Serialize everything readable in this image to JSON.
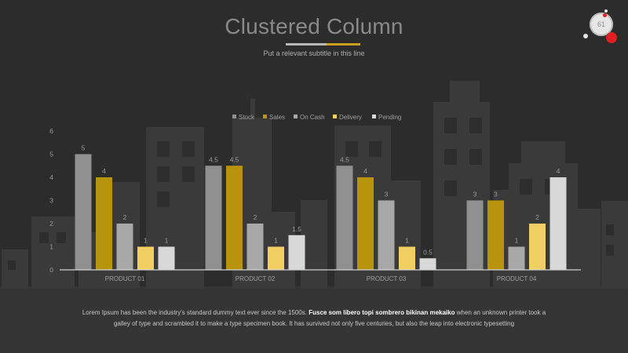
{
  "slide": {
    "title": "Clustered Column",
    "subtitle": "Put a relevant subtitle in this line",
    "page_number": "61",
    "footer_part1": "Lorem Ipsum has been the industry's standard dummy text ever since the 1500s.",
    "footer_bold": "Fusce som libero topi sombrero bikinan mekaiko",
    "footer_part2": "when an unknown printer took a galley of type and scrambled it to make a type specimen book. It has survived not only five centuries, but also the leap into electronic typesetting"
  },
  "colors": {
    "background": "#2d2c2c",
    "title": "#8a8a8a",
    "accent_gold": "#c8a020",
    "accent_red": "#e02020"
  },
  "chart_data": {
    "type": "bar",
    "categories": [
      "PRODUCT 01",
      "PRODUCT 02",
      "PRODUCT 03",
      "PRODUCT 04"
    ],
    "series": [
      {
        "name": "Stock",
        "color": "#909090",
        "values": [
          5,
          4.5,
          4.5,
          3
        ]
      },
      {
        "name": "Sales",
        "color": "#b8940e",
        "values": [
          4,
          4.5,
          4,
          3
        ]
      },
      {
        "name": "On Cash",
        "color": "#a8a8a8",
        "values": [
          2,
          2,
          3,
          1
        ]
      },
      {
        "name": "Delivery",
        "color": "#f2cf62",
        "values": [
          1,
          1,
          1,
          2
        ]
      },
      {
        "name": "Pending",
        "color": "#d8d8d8",
        "values": [
          1,
          1.5,
          0.5,
          4
        ]
      }
    ],
    "data_labels": [
      [
        "5",
        "4",
        "2",
        "1",
        "1"
      ],
      [
        "4.5",
        "4.5",
        "2",
        "1",
        "1.5"
      ],
      [
        "4.5",
        "4",
        "3",
        "1",
        "0.5"
      ],
      [
        "3",
        "3",
        "1",
        "2",
        "4"
      ]
    ],
    "y_ticks": [
      "0",
      "1",
      "2",
      "3",
      "4",
      "5",
      "6"
    ],
    "ylim": [
      0,
      6
    ],
    "legend_position": "top-center",
    "grid": false
  }
}
